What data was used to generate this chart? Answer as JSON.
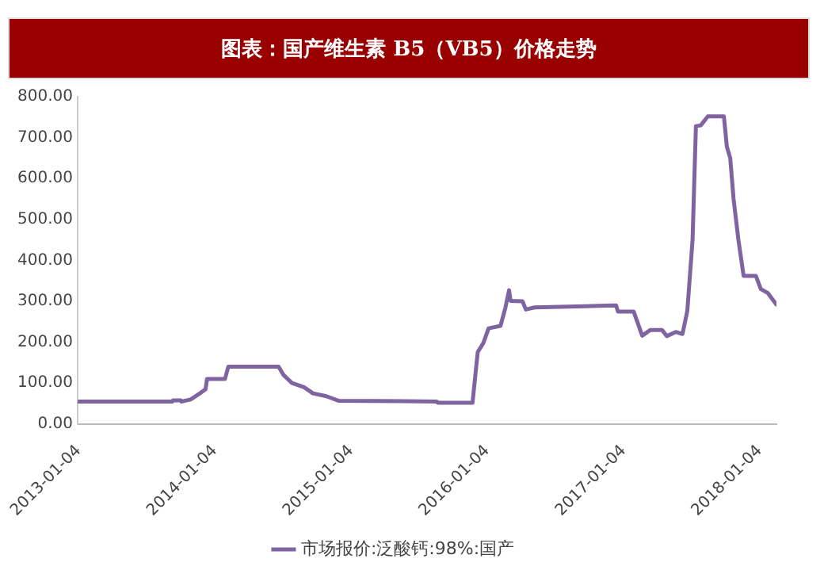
{
  "chart_data": {
    "type": "line",
    "title": "图表：国产维生素 B5（VB5）价格走势",
    "x": [
      "2013-01-04",
      "2013-09-12",
      "2013-09-14",
      "2013-10-04",
      "2013-10-06",
      "2013-10-31",
      "2013-11-25",
      "2013-12-10",
      "2013-12-14",
      "2014-01-31",
      "2014-02-09",
      "2014-06-24",
      "2014-07-07",
      "2014-07-30",
      "2014-08-31",
      "2014-09-24",
      "2014-10-30",
      "2014-12-01",
      "2015-08-22",
      "2015-08-25",
      "2015-11-26",
      "2015-12-05",
      "2015-12-10",
      "2015-12-25",
      "2016-01-08",
      "2016-02-09",
      "2016-02-22",
      "2016-03-03",
      "2016-03-07",
      "2016-04-08",
      "2016-04-17",
      "2016-05-10",
      "2016-09-24",
      "2016-12-15",
      "2016-12-20",
      "2017-01-31",
      "2017-02-23",
      "2017-03-17",
      "2017-04-17",
      "2017-04-30",
      "2017-05-24",
      "2017-06-11",
      "2017-06-24",
      "2017-07-08",
      "2017-07-17",
      "2017-07-30",
      "2017-08-18",
      "2017-09-30",
      "2017-10-08",
      "2017-10-17",
      "2017-10-26",
      "2017-11-08",
      "2017-11-22",
      "2017-12-25",
      "2018-01-07",
      "2018-01-26",
      "2018-02-18"
    ],
    "series": [
      {
        "name": "市场报价:泛酸钙:98%:国产",
        "color": "#8064a2",
        "values": [
          55,
          55,
          58,
          58,
          55,
          60,
          75,
          85,
          110,
          110,
          140,
          140,
          120,
          100,
          90,
          75,
          68,
          57,
          55,
          52,
          52,
          133,
          176,
          198,
          234,
          240,
          284,
          327,
          301,
          300,
          280,
          285,
          288,
          290,
          275,
          275,
          216,
          230,
          230,
          215,
          225,
          220,
          277,
          450,
          728,
          730,
          752,
          752,
          678,
          650,
          550,
          450,
          362,
          362,
          330,
          320,
          292
        ]
      }
    ],
    "xlim": [
      "2013-01-01",
      "2018-02-18"
    ],
    "xticks": [
      "2013-01-04",
      "2014-01-04",
      "2015-01-04",
      "2016-01-04",
      "2017-01-04",
      "2018-01-04"
    ],
    "ylim": [
      0,
      800
    ],
    "yticks": [
      {
        "value": 0,
        "label": "0.00"
      },
      {
        "value": 100,
        "label": "100.00"
      },
      {
        "value": 200,
        "label": "200.00"
      },
      {
        "value": 300,
        "label": "300.00"
      },
      {
        "value": 400,
        "label": "400.00"
      },
      {
        "value": 500,
        "label": "500.00"
      },
      {
        "value": 600,
        "label": "600.00"
      },
      {
        "value": 700,
        "label": "700.00"
      },
      {
        "value": 800,
        "label": "800.00"
      }
    ],
    "grid": false,
    "legend": "bottom",
    "marker": "none",
    "line_style": "solid"
  }
}
